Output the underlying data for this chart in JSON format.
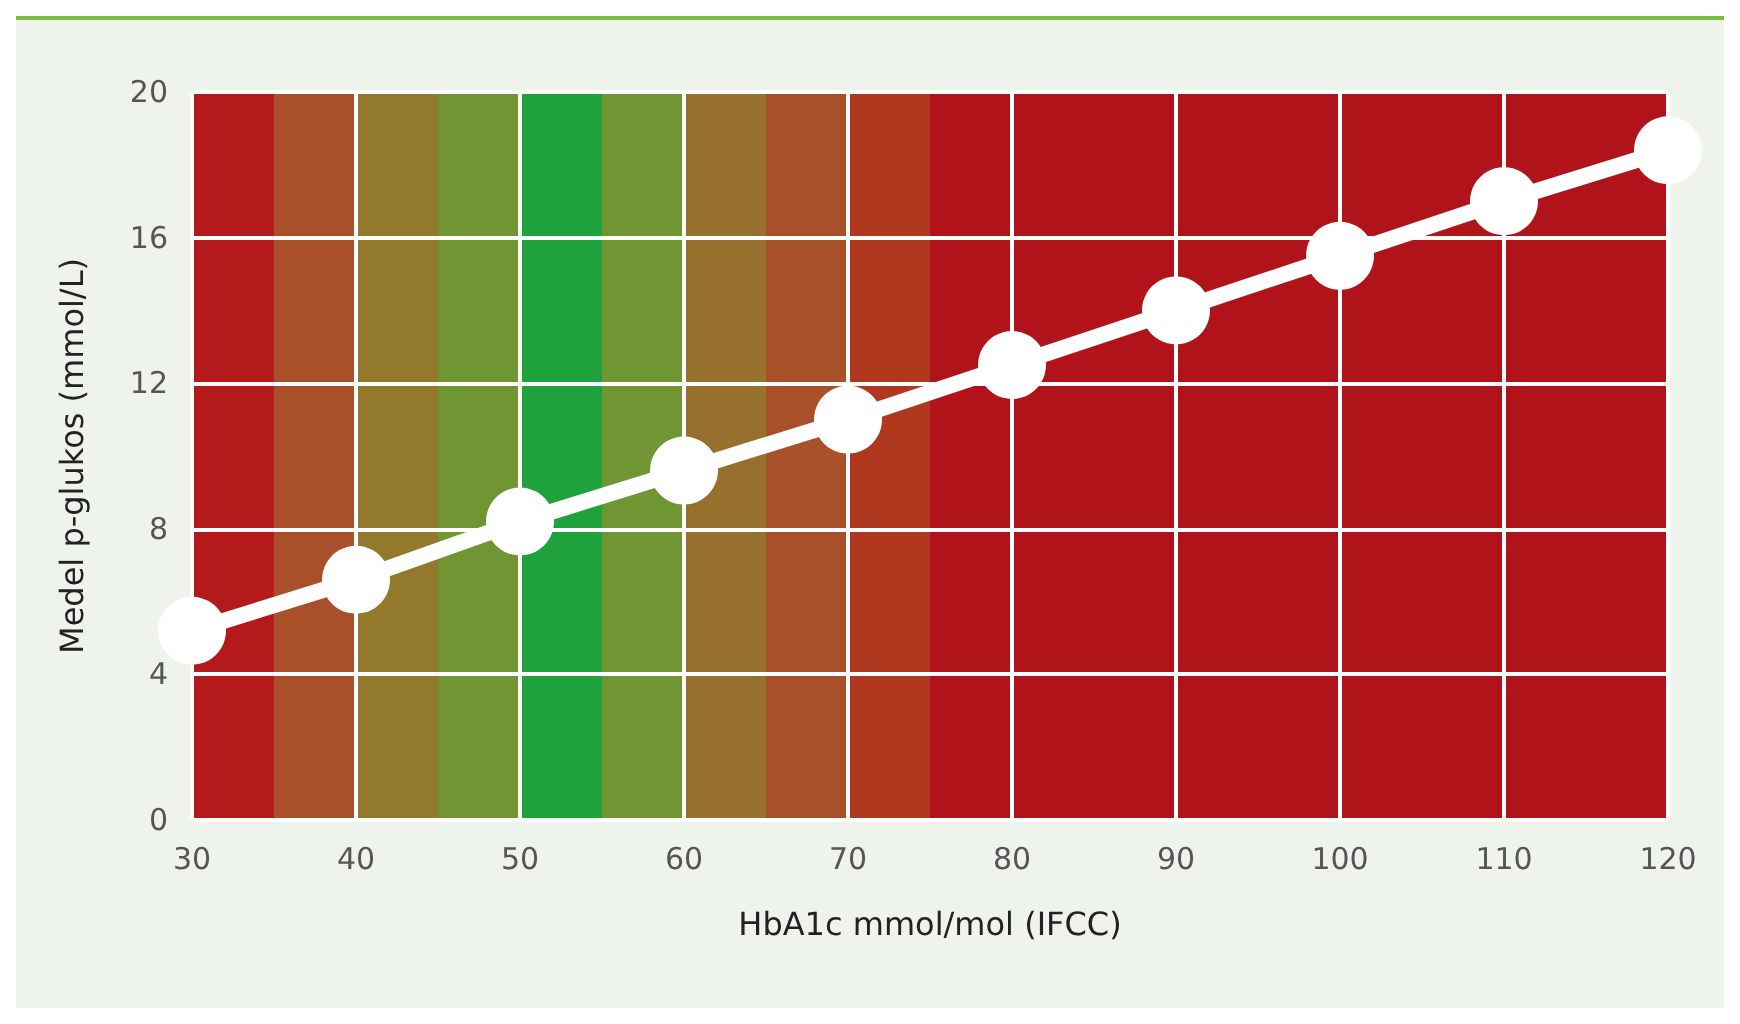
{
  "chart_data": {
    "type": "line",
    "xlabel": "HbA1c mmol/mol (IFCC)",
    "ylabel": "Medel p-glukos (mmol/L)",
    "x": [
      30,
      40,
      50,
      60,
      70,
      80,
      90,
      100,
      110,
      120
    ],
    "series": [
      {
        "color": "#ffffff",
        "values": [
          5.2,
          6.6,
          8.2,
          9.6,
          11.0,
          12.5,
          14.0,
          15.5,
          17.0,
          18.4
        ]
      }
    ],
    "xlim": [
      30,
      120
    ],
    "xticks": [
      30,
      40,
      50,
      60,
      70,
      80,
      90,
      100,
      110,
      120
    ],
    "ylim": [
      0,
      20
    ],
    "yticks": [
      0,
      4,
      8,
      12,
      16,
      20
    ],
    "grid": true,
    "marker": "circle",
    "line_style": "solid",
    "bands": [
      {
        "axis": "x",
        "from": 30,
        "to": 35,
        "color": "#b41a1c"
      },
      {
        "axis": "x",
        "from": 35,
        "to": 40,
        "color": "#a9502a"
      },
      {
        "axis": "x",
        "from": 40,
        "to": 45,
        "color": "#93792c"
      },
      {
        "axis": "x",
        "from": 45,
        "to": 50,
        "color": "#6f9633"
      },
      {
        "axis": "x",
        "from": 50,
        "to": 55,
        "color": "#1fa23c"
      },
      {
        "axis": "x",
        "from": 55,
        "to": 60,
        "color": "#6f9633"
      },
      {
        "axis": "x",
        "from": 60,
        "to": 65,
        "color": "#96702c"
      },
      {
        "axis": "x",
        "from": 65,
        "to": 70,
        "color": "#a8502a"
      },
      {
        "axis": "x",
        "from": 70,
        "to": 75,
        "color": "#b0381f"
      },
      {
        "axis": "x",
        "from": 75,
        "to": 120,
        "color": "#b0141a"
      }
    ]
  }
}
